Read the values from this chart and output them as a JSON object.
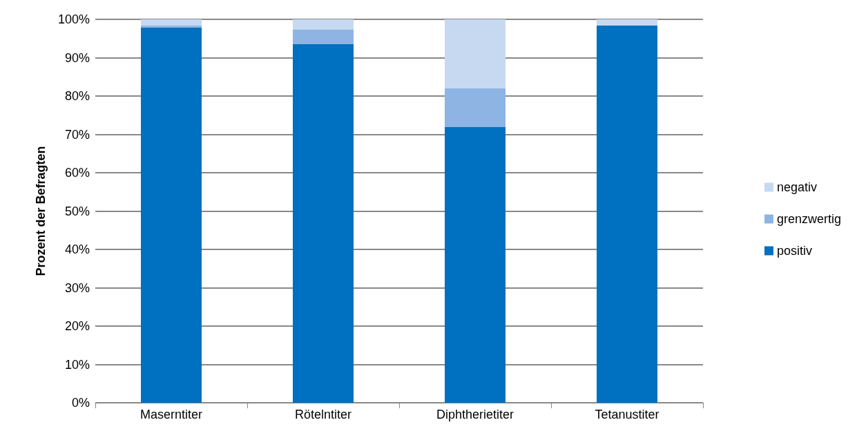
{
  "chart_data": {
    "type": "bar",
    "stacked": true,
    "ylabel": "Prozent der Befragten",
    "categories": [
      "Maserntiter",
      "Rötelntiter",
      "Diphtherietiter",
      "Tetanustiter"
    ],
    "series": [
      {
        "name": "positiv",
        "color": "#0070c0",
        "values": [
          97.9,
          93.5,
          72,
          98.4
        ]
      },
      {
        "name": "grenzwertig",
        "color": "#8eb4e3",
        "values": [
          0.5,
          3.9,
          10,
          0
        ]
      },
      {
        "name": "negativ",
        "color": "#c6d9f1",
        "values": [
          1.6,
          2.6,
          18,
          1.6
        ]
      }
    ],
    "ylim": [
      0,
      100
    ],
    "yticks": [
      {
        "value": 0,
        "label": "0%"
      },
      {
        "value": 10,
        "label": "10%"
      },
      {
        "value": 20,
        "label": "20%"
      },
      {
        "value": 30,
        "label": "30%"
      },
      {
        "value": 40,
        "label": "40%"
      },
      {
        "value": 50,
        "label": "50%"
      },
      {
        "value": 60,
        "label": "60%"
      },
      {
        "value": 70,
        "label": "70%"
      },
      {
        "value": 80,
        "label": "80%"
      },
      {
        "value": 90,
        "label": "90%"
      },
      {
        "value": 100,
        "label": "100%"
      }
    ],
    "grid": "y",
    "legend": "right"
  }
}
